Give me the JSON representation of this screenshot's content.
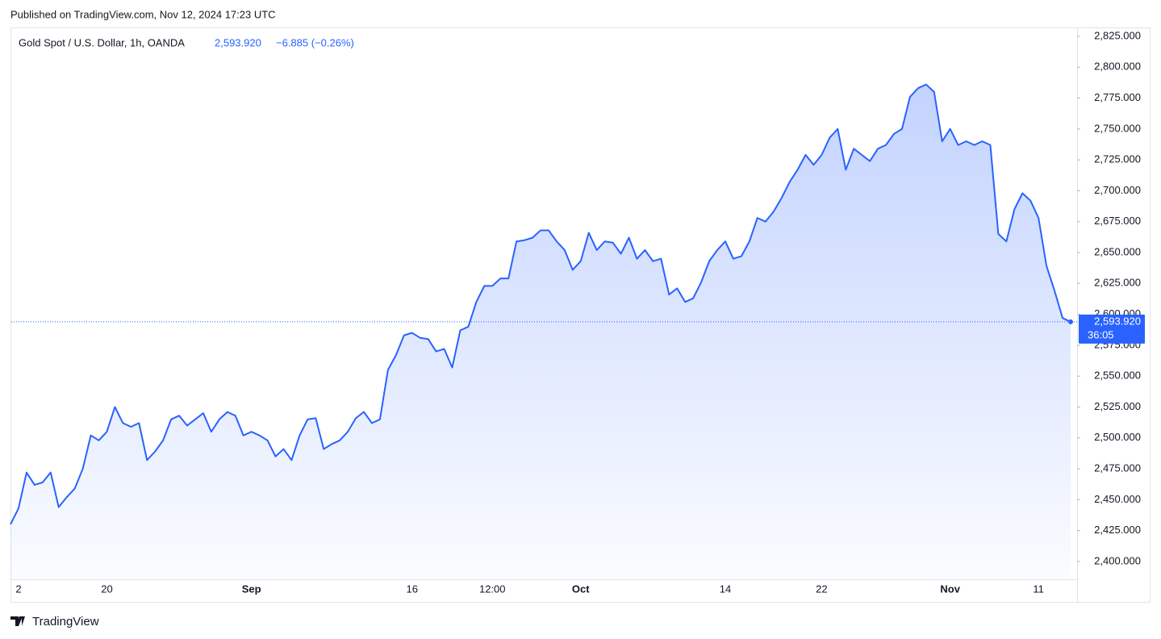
{
  "published": "Published on TradingView.com, Nov 12, 2024 17:23 UTC",
  "chart_data": {
    "type": "area",
    "title": "Gold Spot / U.S. Dollar, 1h, OANDA",
    "change_text": "−6.885 (−0.26%)",
    "last_price": {
      "value": 2593.92,
      "label": "2,593.920"
    },
    "countdown": "36:05",
    "color": "#2962ff",
    "categories": [
      null,
      "2",
      null,
      null,
      null,
      null,
      null,
      null,
      null,
      null,
      null,
      null,
      "20",
      null,
      null,
      null,
      null,
      null,
      null,
      null,
      null,
      null,
      null,
      null,
      null,
      null,
      null,
      null,
      null,
      null,
      "Sep",
      null,
      null,
      null,
      null,
      null,
      null,
      null,
      null,
      null,
      null,
      null,
      null,
      null,
      null,
      null,
      null,
      null,
      null,
      null,
      "16",
      null,
      null,
      null,
      null,
      null,
      null,
      null,
      null,
      null,
      "12:00",
      null,
      null,
      null,
      null,
      null,
      null,
      null,
      null,
      null,
      null,
      "Oct",
      null,
      null,
      null,
      null,
      null,
      null,
      null,
      null,
      null,
      null,
      null,
      null,
      null,
      null,
      null,
      null,
      null,
      "14",
      null,
      null,
      null,
      null,
      null,
      null,
      null,
      null,
      null,
      null,
      null,
      "22",
      null,
      null,
      null,
      null,
      null,
      null,
      null,
      null,
      null,
      null,
      null,
      null,
      null,
      null,
      null,
      "Nov",
      null,
      null,
      null,
      null,
      null,
      null,
      null,
      null,
      null,
      null,
      "11",
      null,
      null,
      null,
      null
    ],
    "values": [
      2430,
      2443,
      2472,
      2462,
      2464,
      2472,
      2444,
      2452,
      2459,
      2475,
      2502,
      2498,
      2505,
      2525,
      2512,
      2509,
      2512,
      2482,
      2489,
      2498,
      2515,
      2518,
      2510,
      2515,
      2520,
      2505,
      2515,
      2521,
      2518,
      2502,
      2505,
      2502,
      2498,
      2485,
      2491,
      2482,
      2502,
      2515,
      2516,
      2491,
      2495,
      2498,
      2505,
      2516,
      2521,
      2512,
      2515,
      2555,
      2567,
      2583,
      2585,
      2581,
      2580,
      2570,
      2572,
      2557,
      2587,
      2590,
      2610,
      2623,
      2623,
      2629,
      2629,
      2659,
      2660,
      2662,
      2668,
      2668,
      2659,
      2652,
      2636,
      2643,
      2666,
      2652,
      2659,
      2658,
      2649,
      2662,
      2645,
      2652,
      2643,
      2645,
      2616,
      2621,
      2610,
      2613,
      2626,
      2643,
      2652,
      2659,
      2645,
      2647,
      2659,
      2678,
      2675,
      2683,
      2694,
      2707,
      2717,
      2729,
      2721,
      2729,
      2743,
      2750,
      2717,
      2734,
      2729,
      2724,
      2734,
      2737,
      2746,
      2750,
      2776,
      2783,
      2786,
      2780,
      2740,
      2750,
      2737,
      2740,
      2737,
      2740,
      2737,
      2665,
      2659,
      2685,
      2698,
      2692,
      2678,
      2639,
      2619,
      2597,
      2593.92
    ],
    "ylim": [
      2385.6,
      2831.5
    ],
    "yticks": [
      {
        "value": 2400,
        "label": "2,400.000"
      },
      {
        "value": 2425,
        "label": "2,425.000"
      },
      {
        "value": 2450,
        "label": "2,450.000"
      },
      {
        "value": 2475,
        "label": "2,475.000"
      },
      {
        "value": 2500,
        "label": "2,500.000"
      },
      {
        "value": 2525,
        "label": "2,525.000"
      },
      {
        "value": 2550,
        "label": "2,550.000"
      },
      {
        "value": 2575,
        "label": "2,575.000"
      },
      {
        "value": 2600,
        "label": "2,600.000"
      },
      {
        "value": 2625,
        "label": "2,625.000"
      },
      {
        "value": 2650,
        "label": "2,650.000"
      },
      {
        "value": 2675,
        "label": "2,675.000"
      },
      {
        "value": 2700,
        "label": "2,700.000"
      },
      {
        "value": 2725,
        "label": "2,725.000"
      },
      {
        "value": 2750,
        "label": "2,750.000"
      },
      {
        "value": 2775,
        "label": "2,775.000"
      },
      {
        "value": 2800,
        "label": "2,800.000"
      },
      {
        "value": 2825,
        "label": "2,825.000"
      }
    ]
  },
  "footer": {
    "brand": "TradingView"
  }
}
